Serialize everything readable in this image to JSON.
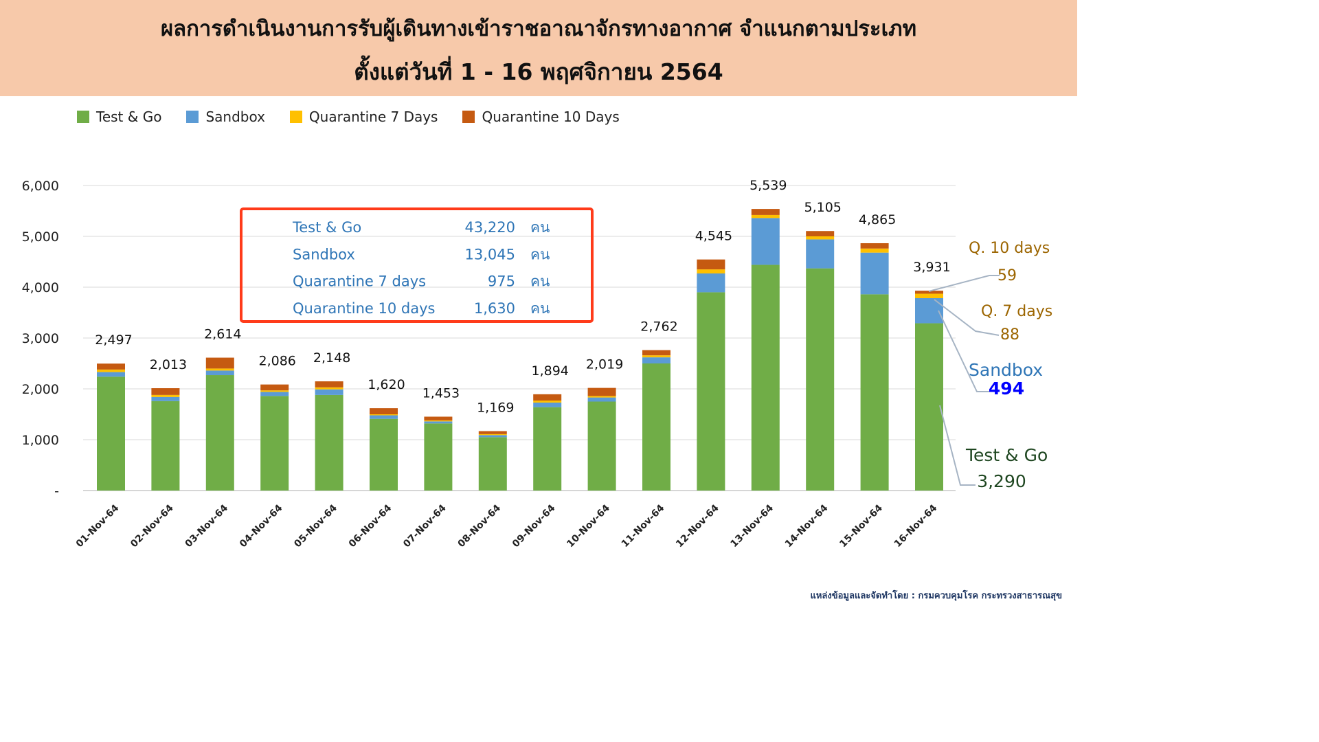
{
  "header": {
    "title_line1": "ผลการดำเนินงานการรับผู้เดินทางเข้าราชอาณาจักรทางอากาศ จำแนกตามประเภท",
    "title_line2": "ตั้งแต่วันที่  1 - 16  พฤศจิกายน 2564"
  },
  "legend": [
    {
      "label": "Test & Go",
      "color": "#70ad47"
    },
    {
      "label": "Sandbox",
      "color": "#5b9bd5"
    },
    {
      "label": "Quarantine 7 Days",
      "color": "#ffc000"
    },
    {
      "label": "Quarantine 10 Days",
      "color": "#c55a11"
    }
  ],
  "summary_box": {
    "unit": "คน",
    "rows": [
      {
        "label": "Test & Go",
        "value": "43,220"
      },
      {
        "label": "Sandbox",
        "value": "13,045"
      },
      {
        "label": "Quarantine 7 days",
        "value": "975"
      },
      {
        "label": "Quarantine 10 days",
        "value": "1,630"
      }
    ]
  },
  "callouts": [
    {
      "label": "Q. 10 days",
      "value": "59",
      "label_color": "#9c6500",
      "value_color": "#9c6500"
    },
    {
      "label": "Q. 7 days",
      "value": "88",
      "label_color": "#9c6500",
      "value_color": "#9c6500"
    },
    {
      "label": "Sandbox",
      "value": "494",
      "label_color": "#2e75b6",
      "value_color": "#0000ff"
    },
    {
      "label": "Test & Go",
      "value": "3,290",
      "label_color": "#1e4620",
      "value_color": "#1e4620"
    }
  ],
  "source": "แหล่งข้อมูลและจัดทำโดย : กรมควบคุมโรค กระทรวงสาธารณสุข",
  "chart_data": {
    "type": "bar",
    "stacked": true,
    "categories": [
      "01-Nov-64",
      "02-Nov-64",
      "03-Nov-64",
      "04-Nov-64",
      "05-Nov-64",
      "06-Nov-64",
      "07-Nov-64",
      "08-Nov-64",
      "09-Nov-64",
      "10-Nov-64",
      "11-Nov-64",
      "12-Nov-64",
      "13-Nov-64",
      "14-Nov-64",
      "15-Nov-64",
      "16-Nov-64"
    ],
    "totals": [
      2497,
      2013,
      2614,
      2086,
      2148,
      1620,
      1453,
      1169,
      1894,
      2019,
      2762,
      4545,
      5539,
      5105,
      4865,
      3931
    ],
    "total_labels": [
      "2,497",
      "2,013",
      "2,614",
      "2,086",
      "2,148",
      "1,620",
      "1,453",
      "1,169",
      "1,894",
      "2,019",
      "2,762",
      "4,545",
      "5,539",
      "5,105",
      "4,865",
      "3,931"
    ],
    "series": [
      {
        "name": "Test & Go",
        "color": "#70ad47",
        "values": [
          2240,
          1760,
          2270,
          1860,
          1880,
          1410,
          1320,
          1050,
          1640,
          1750,
          2500,
          3900,
          4440,
          4370,
          3860,
          3290
        ]
      },
      {
        "name": "Sandbox",
        "color": "#5b9bd5",
        "values": [
          90,
          80,
          90,
          80,
          110,
          70,
          40,
          40,
          90,
          80,
          120,
          370,
          920,
          570,
          820,
          494
        ]
      },
      {
        "name": "Quarantine 7 Days",
        "color": "#ffc000",
        "values": [
          50,
          40,
          40,
          30,
          40,
          20,
          20,
          20,
          40,
          30,
          40,
          80,
          60,
          60,
          80,
          88
        ]
      },
      {
        "name": "Quarantine 10 Days",
        "color": "#c55a11",
        "values": [
          117,
          133,
          214,
          116,
          118,
          120,
          73,
          59,
          124,
          159,
          102,
          195,
          119,
          105,
          105,
          59
        ]
      }
    ],
    "yticks": [
      "-",
      "1,000",
      "2,000",
      "3,000",
      "4,000",
      "5,000",
      "6,000"
    ],
    "ylim": [
      0,
      6000
    ],
    "grid": true,
    "legend_position": "top-left"
  }
}
